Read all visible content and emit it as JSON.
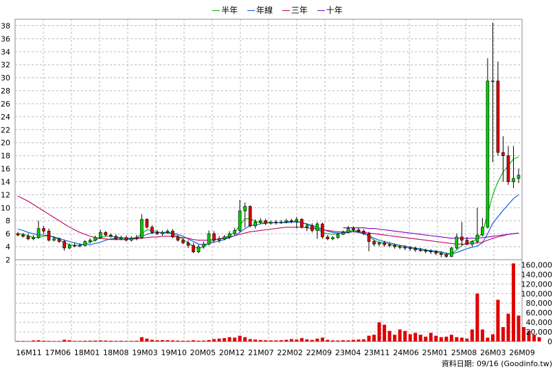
{
  "chart_data": {
    "type": "candlestick",
    "legend": [
      {
        "name": "半年",
        "color": "#00b000"
      },
      {
        "name": "年線",
        "color": "#0050e0"
      },
      {
        "name": "三年",
        "color": "#c00060"
      },
      {
        "name": "十年",
        "color": "#8000c0"
      }
    ],
    "x_tick_labels": [
      "16M11",
      "17M06",
      "18M01",
      "18M08",
      "19M03",
      "19M10",
      "20M05",
      "20M12",
      "21M07",
      "22M02",
      "22M09",
      "23M04",
      "23M11",
      "24M06",
      "25M01",
      "25M08",
      "26M03",
      "26M09"
    ],
    "price_axis": {
      "min": 2,
      "max": 39,
      "ticks": [
        2,
        4,
        6,
        8,
        10,
        12,
        14,
        16,
        18,
        20,
        22,
        24,
        26,
        28,
        30,
        32,
        34,
        36,
        38
      ]
    },
    "volume_axis": {
      "min": 0,
      "max": 165000,
      "ticks": [
        0,
        20000,
        40000,
        60000,
        80000,
        100000,
        120000,
        140000,
        160000
      ],
      "tick_labels": [
        "0",
        "20,000",
        "40,000",
        "60,000",
        "80,000",
        "100,000",
        "120,000",
        "140,000",
        "160,000"
      ]
    },
    "candles": {
      "open": [
        6.0,
        5.8,
        5.6,
        5.2,
        5.4,
        6.8,
        6.4,
        5.0,
        5.2,
        4.8,
        3.8,
        4.2,
        4.1,
        4.2,
        4.8,
        5.0,
        5.4,
        6.2,
        5.8,
        5.6,
        5.2,
        5.4,
        5.0,
        5.3,
        5.4,
        8.2,
        7.0,
        6.2,
        6.0,
        6.2,
        6.4,
        5.5,
        5.0,
        4.6,
        4.2,
        3.2,
        4.0,
        4.4,
        6.0,
        5.0,
        5.2,
        5.5,
        6.0,
        6.5,
        9.5,
        10.2,
        7.2,
        7.8,
        8.0,
        7.6,
        7.8,
        7.7,
        7.8,
        8.0,
        7.9,
        8.2,
        7.0,
        7.2,
        6.5,
        7.5,
        5.5,
        5.2,
        5.4,
        5.9,
        6.2,
        6.8,
        6.6,
        6.4,
        6.0,
        4.8,
        4.4,
        4.6,
        4.3,
        4.2,
        4.0,
        3.9,
        3.8,
        3.7,
        3.5,
        3.4,
        3.3,
        3.2,
        3.0,
        2.8,
        2.5,
        3.8,
        5.5,
        5.0,
        4.4,
        4.8,
        5.8,
        7.0,
        29.5,
        29.5,
        18.5,
        18.0,
        14.0,
        14.5
      ],
      "close": [
        5.8,
        5.6,
        5.2,
        5.4,
        6.8,
        6.4,
        5.0,
        5.2,
        4.8,
        3.8,
        4.2,
        4.1,
        4.2,
        4.8,
        5.0,
        5.4,
        6.2,
        5.8,
        5.6,
        5.2,
        5.4,
        5.0,
        5.3,
        5.4,
        8.2,
        7.0,
        6.2,
        6.0,
        6.2,
        6.4,
        5.5,
        5.0,
        4.6,
        4.2,
        3.2,
        4.0,
        4.4,
        6.0,
        5.0,
        5.2,
        5.5,
        6.0,
        6.5,
        9.5,
        10.2,
        7.2,
        7.8,
        8.0,
        7.6,
        7.8,
        7.7,
        7.8,
        8.0,
        7.9,
        8.2,
        7.0,
        7.2,
        6.5,
        7.5,
        5.5,
        5.2,
        5.4,
        5.9,
        6.2,
        6.8,
        6.6,
        6.4,
        6.0,
        4.8,
        4.4,
        4.6,
        4.3,
        4.2,
        4.0,
        3.9,
        3.8,
        3.7,
        3.5,
        3.4,
        3.3,
        3.2,
        3.0,
        2.8,
        2.5,
        3.8,
        5.5,
        5.0,
        4.4,
        4.8,
        5.8,
        7.0,
        29.5,
        29.5,
        18.5,
        18.0,
        14.0,
        14.5,
        15.0
      ],
      "high": [
        6.3,
        6.1,
        6.0,
        5.8,
        8.0,
        7.2,
        6.8,
        5.6,
        5.4,
        5.1,
        4.5,
        4.6,
        4.5,
        5.0,
        5.3,
        5.7,
        6.6,
        6.4,
        6.0,
        5.9,
        5.7,
        5.7,
        5.6,
        5.8,
        9.0,
        8.4,
        7.3,
        6.6,
        6.5,
        6.7,
        6.7,
        5.8,
        5.3,
        5.0,
        4.6,
        4.3,
        4.8,
        6.5,
        6.4,
        5.6,
        5.8,
        6.4,
        6.9,
        11.2,
        10.8,
        10.4,
        8.2,
        8.4,
        8.3,
        8.0,
        8.1,
        8.1,
        8.3,
        8.3,
        8.6,
        8.4,
        7.6,
        7.6,
        7.8,
        7.7,
        5.8,
        5.6,
        6.1,
        6.5,
        7.2,
        7.1,
        6.9,
        6.7,
        6.3,
        5.1,
        4.8,
        4.9,
        4.7,
        4.5,
        4.3,
        4.2,
        4.1,
        4.0,
        3.8,
        3.7,
        3.6,
        3.5,
        3.3,
        3.1,
        4.0,
        6.0,
        7.8,
        5.5,
        5.0,
        10.0,
        8.4,
        33.0,
        38.5,
        32.5,
        21.0,
        19.5,
        19.5,
        16.0
      ],
      "low": [
        5.6,
        5.4,
        5.0,
        5.0,
        5.2,
        6.0,
        4.8,
        4.8,
        4.6,
        3.4,
        3.6,
        3.9,
        3.9,
        4.0,
        4.5,
        4.8,
        5.2,
        5.6,
        5.4,
        5.0,
        5.0,
        4.8,
        4.8,
        5.0,
        5.2,
        6.8,
        6.0,
        5.8,
        5.7,
        6.0,
        5.3,
        4.8,
        4.4,
        3.8,
        3.0,
        3.0,
        3.7,
        4.2,
        4.6,
        4.6,
        5.0,
        5.2,
        5.8,
        6.2,
        7.0,
        7.0,
        6.8,
        7.5,
        7.3,
        7.4,
        7.4,
        7.5,
        7.6,
        7.6,
        6.8,
        6.8,
        6.4,
        6.2,
        5.2,
        5.2,
        5.0,
        5.0,
        5.2,
        5.8,
        6.0,
        6.3,
        6.2,
        5.8,
        3.3,
        4.1,
        4.1,
        4.0,
        3.9,
        3.7,
        3.6,
        3.5,
        3.4,
        3.2,
        3.2,
        3.0,
        2.9,
        2.7,
        2.4,
        2.3,
        2.4,
        3.6,
        4.2,
        4.2,
        4.0,
        4.5,
        5.6,
        6.8,
        17.0,
        18.0,
        14.0,
        13.5,
        13.0,
        13.8
      ]
    },
    "volume": [
      1000,
      900,
      700,
      2000,
      2500,
      1500,
      1200,
      800,
      900,
      3500,
      2500,
      1200,
      1200,
      1500,
      1600,
      1800,
      2200,
      1800,
      1500,
      1200,
      1400,
      1100,
      1200,
      1500,
      9000,
      6000,
      3500,
      2500,
      2800,
      2600,
      2200,
      1800,
      1500,
      1600,
      2400,
      1600,
      1800,
      3000,
      5000,
      6000,
      7000,
      9000,
      8000,
      12000,
      9000,
      5000,
      4000,
      3000,
      2500,
      2200,
      2100,
      2600,
      3500,
      5000,
      4000,
      7000,
      4500,
      3200,
      6000,
      8000,
      3500,
      2200,
      2000,
      2500,
      2300,
      3500,
      4000,
      4500,
      12000,
      14000,
      40000,
      35000,
      22000,
      14000,
      25000,
      22000,
      15000,
      18000,
      14000,
      10000,
      18000,
      12000,
      9000,
      10000,
      14000,
      9000,
      8000,
      6000,
      25000,
      100000,
      25000,
      8000,
      15000,
      87000,
      30000,
      58000,
      163000,
      54000,
      30000,
      22000,
      14000,
      9000
    ],
    "ma": {
      "半年": [
        6.0,
        5.9,
        5.7,
        5.4,
        5.4,
        5.6,
        5.7,
        5.4,
        5.1,
        4.6,
        4.3,
        4.2,
        4.2,
        4.4,
        4.7,
        5.0,
        5.4,
        5.6,
        5.6,
        5.5,
        5.4,
        5.3,
        5.3,
        5.4,
        6.0,
        6.6,
        6.5,
        6.3,
        6.1,
        6.1,
        6.0,
        5.6,
        5.1,
        4.6,
        4.0,
        3.7,
        4.0,
        4.6,
        5.0,
        5.2,
        5.4,
        5.7,
        6.2,
        7.3,
        8.3,
        8.3,
        7.9,
        7.7,
        7.7,
        7.7,
        7.7,
        7.7,
        7.8,
        7.9,
        7.9,
        7.7,
        7.4,
        7.1,
        6.7,
        6.2,
        6.0,
        5.9,
        6.0,
        6.1,
        6.4,
        6.5,
        6.4,
        6.1,
        5.6,
        5.0,
        4.7,
        4.6,
        4.4,
        4.2,
        4.0,
        3.9,
        3.8,
        3.7,
        3.5,
        3.4,
        3.3,
        3.2,
        3.0,
        2.8,
        2.9,
        3.5,
        4.2,
        4.6,
        4.8,
        5.2,
        6.2,
        9.0,
        12.0,
        14.0,
        15.5,
        16.5,
        17.5,
        17.8
      ],
      "年線": [
        6.7,
        6.5,
        6.2,
        6.0,
        5.8,
        5.8,
        5.7,
        5.5,
        5.3,
        5.0,
        4.8,
        4.6,
        4.4,
        4.3,
        4.3,
        4.5,
        4.7,
        5.0,
        5.2,
        5.3,
        5.3,
        5.3,
        5.3,
        5.3,
        5.6,
        5.9,
        6.1,
        6.2,
        6.2,
        6.2,
        6.1,
        5.9,
        5.6,
        5.2,
        4.8,
        4.4,
        4.3,
        4.5,
        4.7,
        4.9,
        5.1,
        5.4,
        5.7,
        6.2,
        6.8,
        7.2,
        7.4,
        7.5,
        7.6,
        7.7,
        7.7,
        7.7,
        7.7,
        7.8,
        7.8,
        7.7,
        7.5,
        7.3,
        7.0,
        6.7,
        6.4,
        6.2,
        6.1,
        6.1,
        6.2,
        6.3,
        6.2,
        6.0,
        5.7,
        5.3,
        5.0,
        4.8,
        4.6,
        4.4,
        4.2,
        4.1,
        3.9,
        3.8,
        3.7,
        3.5,
        3.4,
        3.3,
        3.2,
        3.0,
        2.9,
        3.1,
        3.4,
        3.7,
        3.9,
        4.1,
        4.6,
        6.0,
        7.6,
        8.6,
        9.6,
        10.5,
        11.4,
        12.0
      ],
      "三年": [
        11.8,
        11.4,
        11.0,
        10.5,
        10.0,
        9.5,
        9.0,
        8.5,
        8.0,
        7.5,
        7.0,
        6.6,
        6.2,
        5.9,
        5.6,
        5.4,
        5.3,
        5.2,
        5.1,
        5.1,
        5.1,
        5.1,
        5.2,
        5.2,
        5.3,
        5.4,
        5.5,
        5.5,
        5.6,
        5.6,
        5.6,
        5.5,
        5.4,
        5.3,
        5.1,
        5.0,
        5.0,
        5.0,
        5.1,
        5.2,
        5.3,
        5.5,
        5.7,
        5.9,
        6.1,
        6.3,
        6.4,
        6.5,
        6.6,
        6.7,
        6.8,
        6.9,
        7.0,
        7.0,
        7.0,
        7.0,
        6.9,
        6.8,
        6.7,
        6.6,
        6.5,
        6.4,
        6.3,
        6.3,
        6.3,
        6.3,
        6.3,
        6.2,
        6.1,
        6.0,
        5.9,
        5.8,
        5.7,
        5.6,
        5.5,
        5.4,
        5.3,
        5.2,
        5.1,
        5.0,
        4.9,
        4.8,
        4.7,
        4.6,
        4.5,
        4.4,
        4.4,
        4.4,
        4.5,
        4.6,
        4.7,
        5.0,
        5.3,
        5.5,
        5.7,
        5.9,
        6.0,
        6.1
      ],
      "十年": [
        null,
        null,
        null,
        null,
        null,
        null,
        null,
        null,
        null,
        null,
        null,
        null,
        null,
        null,
        null,
        null,
        null,
        null,
        null,
        null,
        null,
        null,
        null,
        null,
        null,
        null,
        null,
        null,
        null,
        null,
        null,
        null,
        null,
        null,
        null,
        null,
        null,
        null,
        null,
        null,
        null,
        null,
        null,
        null,
        null,
        null,
        null,
        null,
        null,
        null,
        null,
        null,
        null,
        null,
        null,
        null,
        null,
        null,
        null,
        null,
        null,
        null,
        null,
        6.9,
        6.9,
        6.9,
        6.9,
        6.9,
        6.8,
        6.8,
        6.7,
        6.6,
        6.5,
        6.4,
        6.3,
        6.2,
        6.1,
        6.0,
        5.9,
        5.8,
        5.7,
        5.6,
        5.5,
        5.4,
        5.3,
        5.3,
        5.3,
        5.3,
        5.3,
        5.3,
        5.4,
        5.5,
        5.6,
        5.7,
        5.8,
        5.9,
        6.0,
        6.1
      ]
    },
    "up_color": "#00cc00",
    "down_color": "#dd0000",
    "volume_color": "#e00000"
  },
  "footer": {
    "date_text": "資料日期: 09/16",
    "source_text": "(Goodinfo.tw)"
  }
}
